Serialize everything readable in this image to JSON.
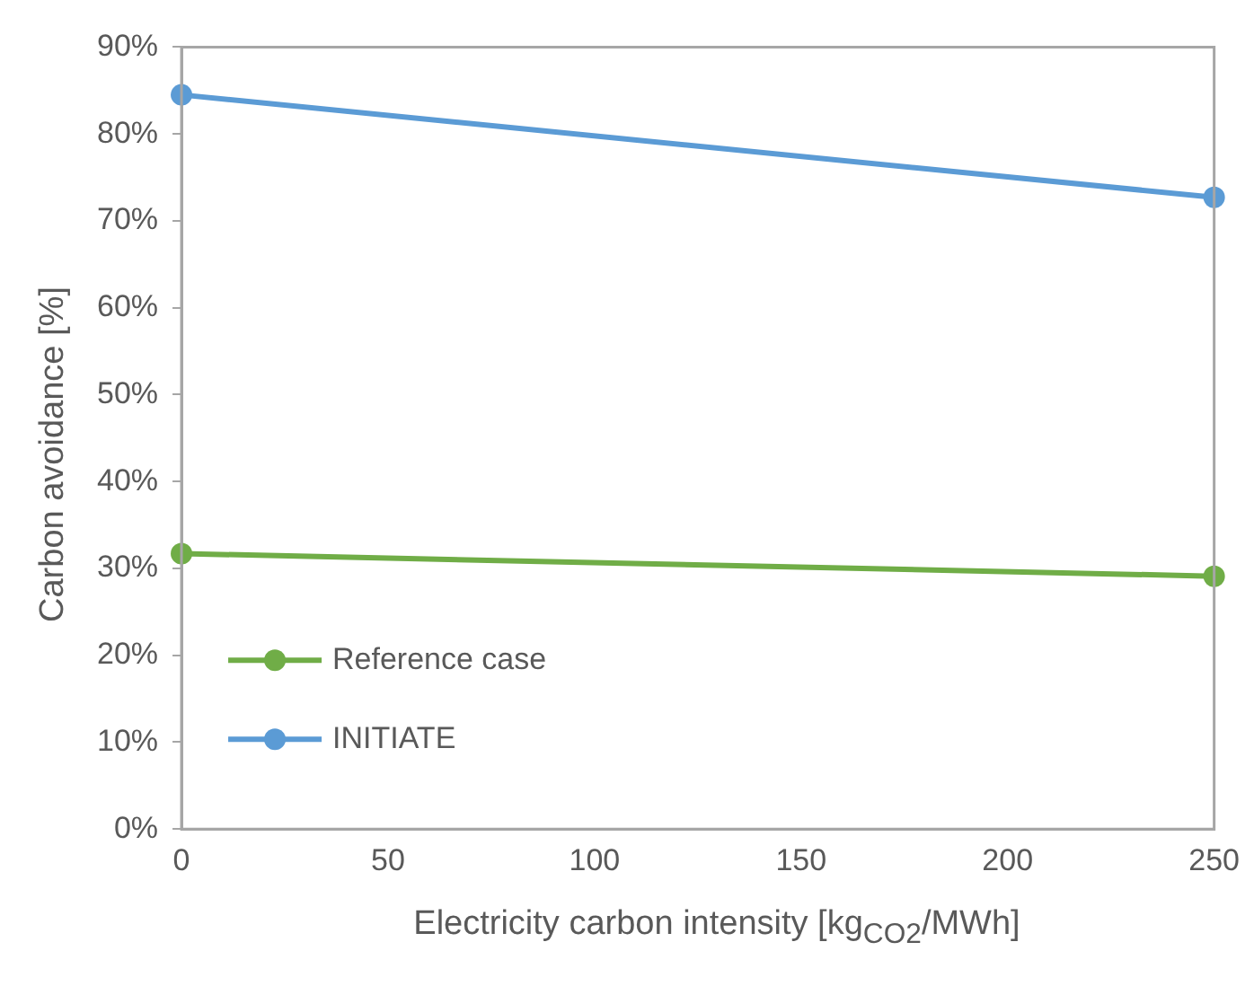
{
  "chart_data": {
    "type": "line",
    "xlabel": "Electricity carbon intensity [kg$_{CO2}$/MWh]",
    "ylabel": "Carbon avoidance [%]",
    "x": [
      0,
      250
    ],
    "series": [
      {
        "name": "Reference case",
        "color": "#70ad47",
        "values": [
          31.7,
          29.1
        ]
      },
      {
        "name": "INITIATE",
        "color": "#5b9bd5",
        "values": [
          84.5,
          72.7
        ]
      }
    ],
    "xlim": [
      0,
      250
    ],
    "xticks": [
      0,
      50,
      100,
      150,
      200,
      250
    ],
    "ylim": [
      0,
      90
    ],
    "yticks": [
      {
        "value": 0,
        "label": "0%"
      },
      {
        "value": 10,
        "label": "10%"
      },
      {
        "value": 20,
        "label": "20%"
      },
      {
        "value": 30,
        "label": "30%"
      },
      {
        "value": 40,
        "label": "40%"
      },
      {
        "value": 50,
        "label": "50%"
      },
      {
        "value": 60,
        "label": "60%"
      },
      {
        "value": 70,
        "label": "70%"
      },
      {
        "value": 80,
        "label": "80%"
      },
      {
        "value": 90,
        "label": "90%"
      }
    ],
    "grid": false,
    "legend": "bottom left",
    "marker": "circle",
    "line_style": "solid"
  }
}
